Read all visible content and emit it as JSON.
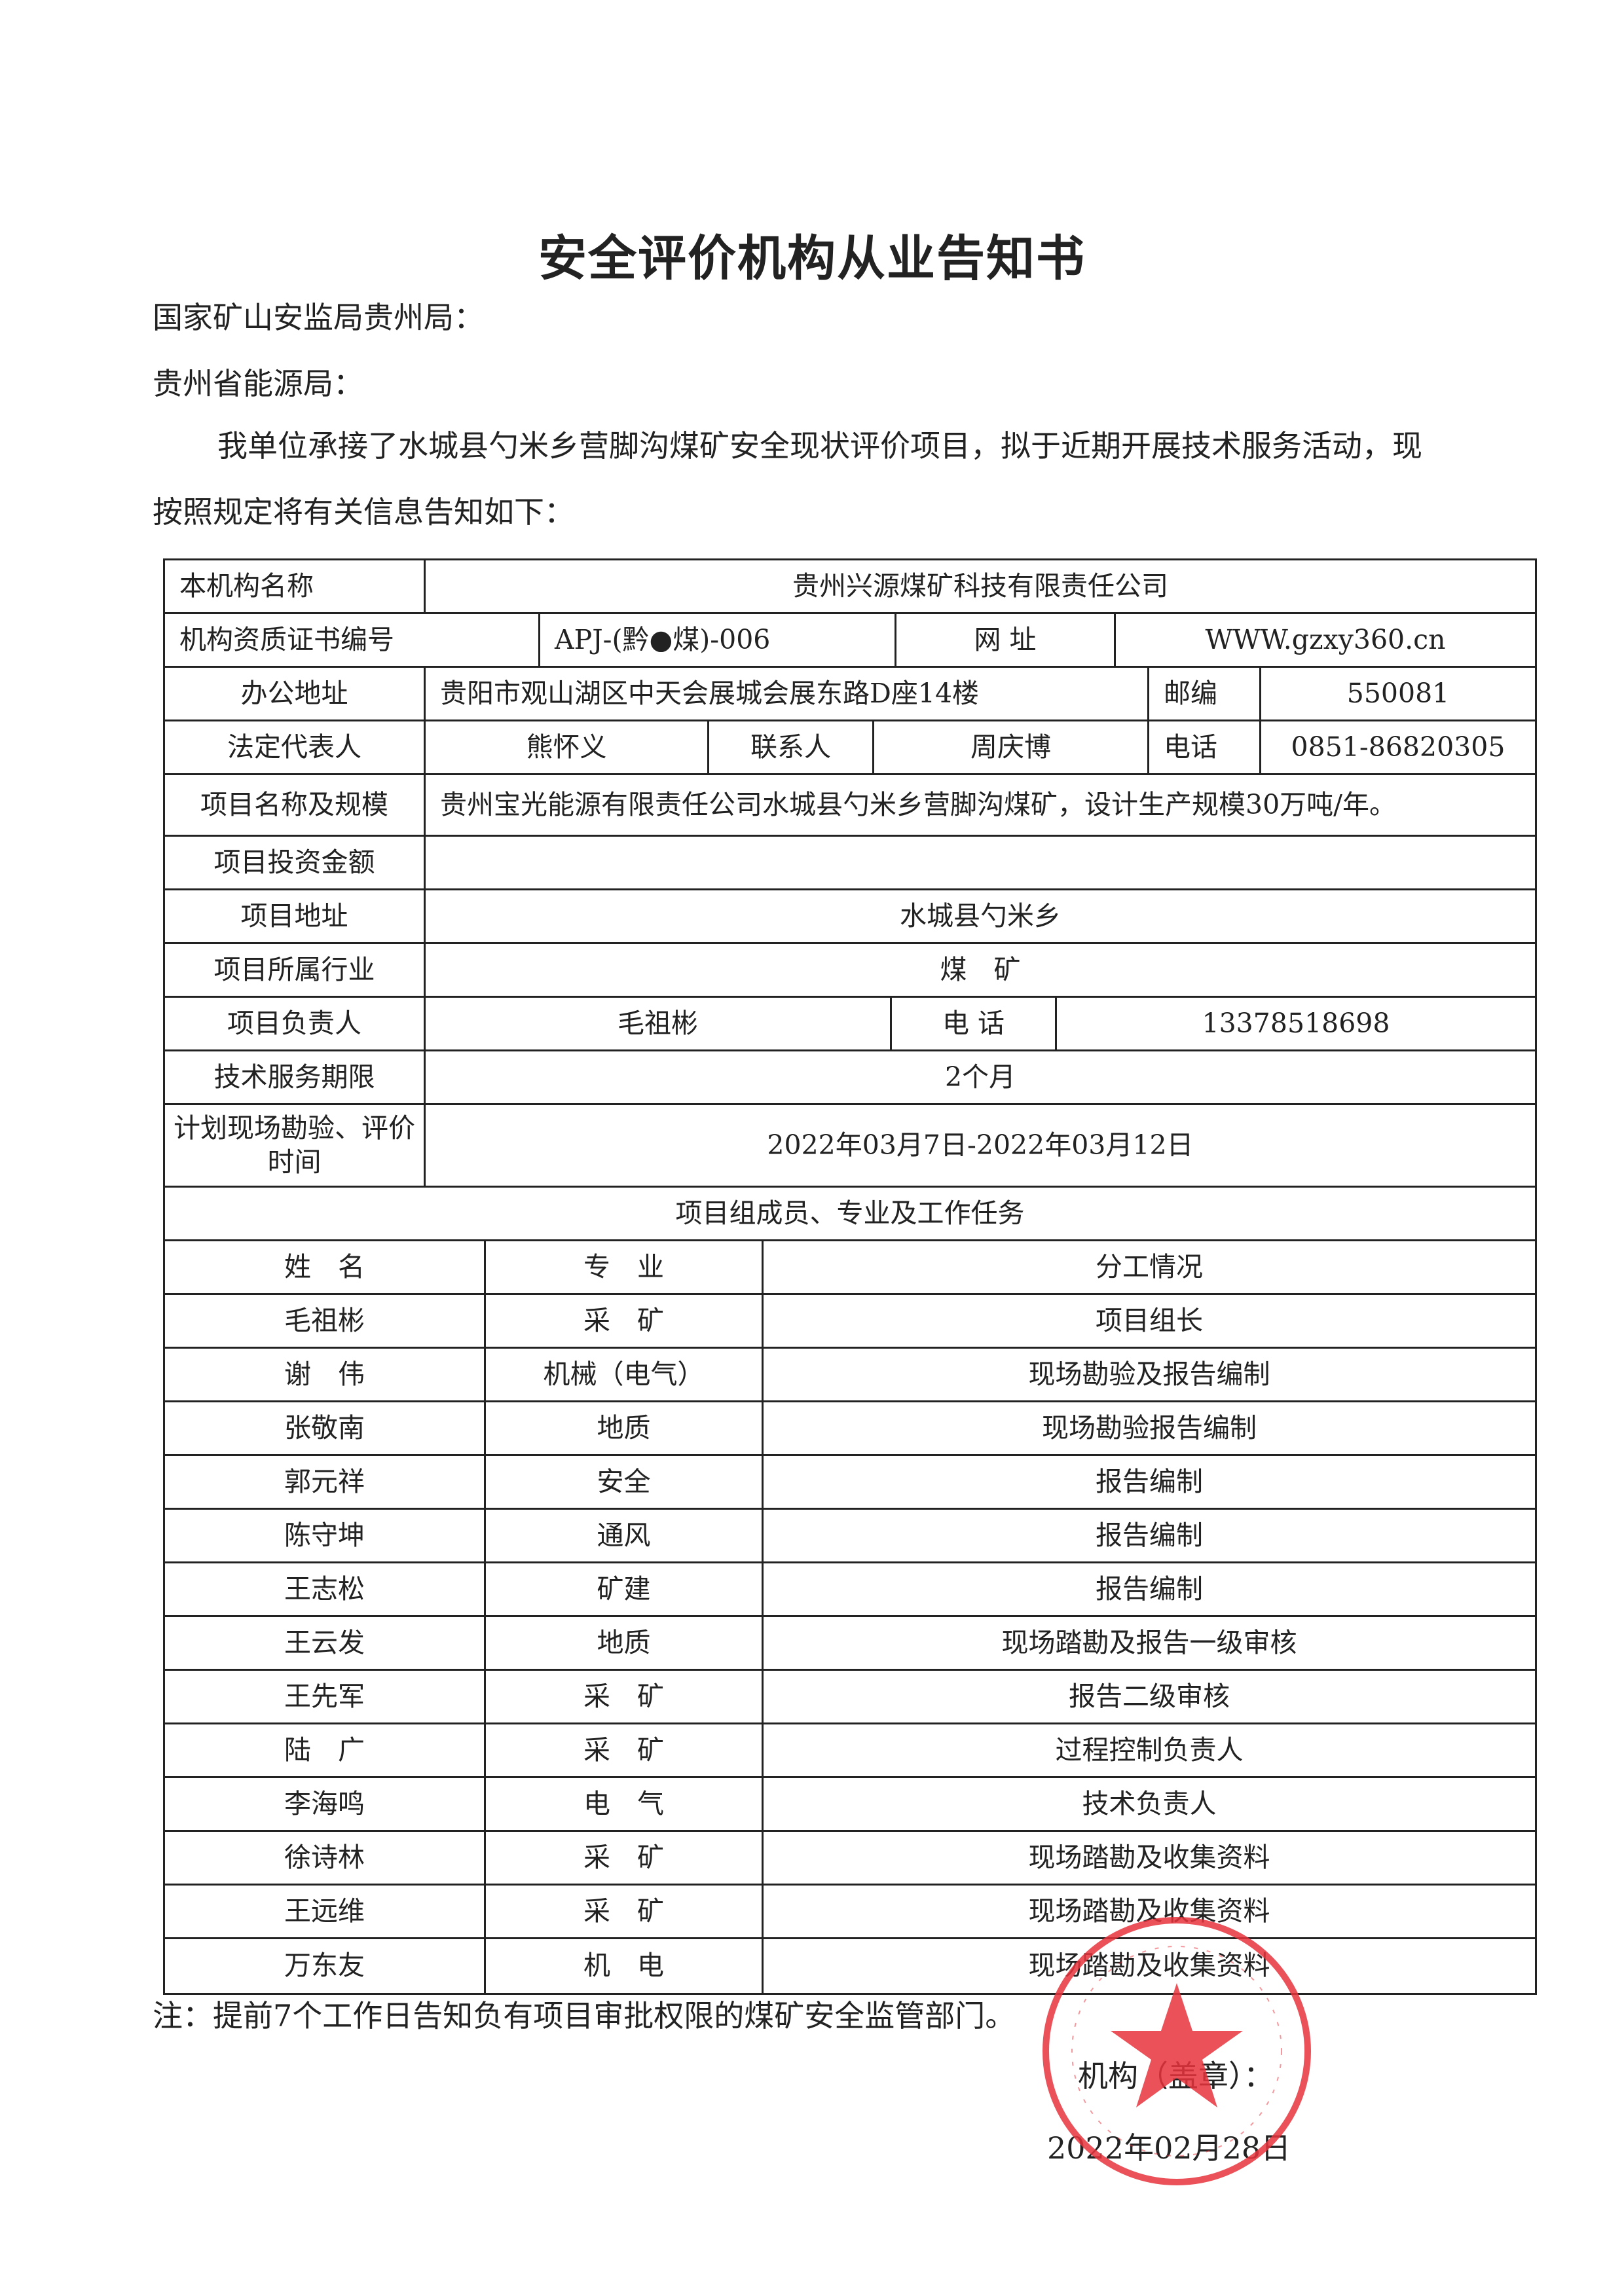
{
  "title": "安全评价机构从业告知书",
  "recipients": [
    "国家矿山安监局贵州局：",
    "贵州省能源局："
  ],
  "body": [
    "我单位承接了水城县勺米乡营脚沟煤矿安全现状评价项目，拟于近期开展技术服务活动，现",
    "按照规定将有关信息告知如下："
  ],
  "info": {
    "org_name_label": "本机构名称",
    "org_name": "贵州兴源煤矿科技有限责任公司",
    "cert_label": "机构资质证书编号",
    "cert": "APJ-(黔●煤)-006",
    "website_label": "网 址",
    "website": "WWW.gzxy360.cn",
    "address_label": "办公地址",
    "address": "贵阳市观山湖区中天会展城会展东路D座14楼",
    "postcode_label": "邮编",
    "postcode": "550081",
    "legal_rep_label": "法定代表人",
    "legal_rep": "熊怀义",
    "contact_label": "联系人",
    "contact": "周庆博",
    "phone_label": "电话",
    "phone": "0851-86820305",
    "project_label": "项目名称及规模",
    "project": "贵州宝光能源有限责任公司水城县勺米乡营脚沟煤矿，设计生产规模30万吨/年。",
    "investment_label": "项目投资金额",
    "investment": "",
    "project_address_label": "项目地址",
    "project_address": "水城县勺米乡",
    "industry_label": "项目所属行业",
    "industry": "煤　矿",
    "leader_label": "项目负责人",
    "leader": "毛祖彬",
    "leader_phone_label": "电 话",
    "leader_phone": "13378518698",
    "period_label": "技术服务期限",
    "period": "2个月",
    "schedule_label": "计划现场勘验、评价时间",
    "schedule": "2022年03月7日-2022年03月12日"
  },
  "members_title": "项目组成员、专业及工作任务",
  "members_headers": [
    "姓　名",
    "专　业",
    "分工情况"
  ],
  "members": [
    [
      "毛祖彬",
      "采　矿",
      "项目组长"
    ],
    [
      "谢　伟",
      "机械（电气）",
      "现场勘验及报告编制"
    ],
    [
      "张敬南",
      "地质",
      "现场勘验报告编制"
    ],
    [
      "郭元祥",
      "安全",
      "报告编制"
    ],
    [
      "陈守坤",
      "通风",
      "报告编制"
    ],
    [
      "王志松",
      "矿建",
      "报告编制"
    ],
    [
      "王云发",
      "地质",
      "现场踏勘及报告一级审核"
    ],
    [
      "王先军",
      "采　矿",
      "报告二级审核"
    ],
    [
      "陆　广",
      "采　矿",
      "过程控制负责人"
    ],
    [
      "李海鸣",
      "电　气",
      "技术负责人"
    ],
    [
      "徐诗林",
      "采　矿",
      "现场踏勘及收集资料"
    ],
    [
      "王远维",
      "采　矿",
      "现场踏勘及收集资料"
    ],
    [
      "万东友",
      "机　电",
      "现场踏勘及收集资料"
    ]
  ],
  "note": "注：提前7个工作日告知负有项目审批权限的煤矿安全监管部门。",
  "seal_label": "机构（盖章）：",
  "date": "2022年02月28日",
  "stamp": {
    "text": "贵州兴源煤矿科技有限责任公司",
    "color": "#e8323c"
  }
}
